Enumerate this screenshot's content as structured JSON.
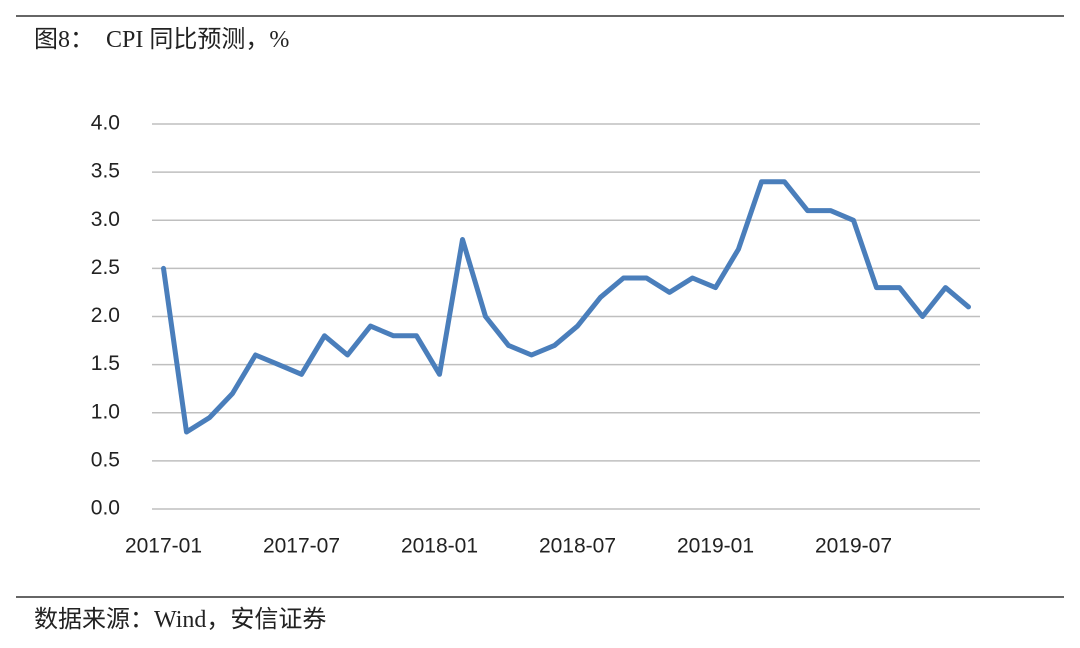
{
  "chart_data": {
    "type": "line",
    "title": "图8：  CPI 同比预测，%",
    "source": "数据来源：Wind，安信证券",
    "categories": [
      "2017-01",
      null,
      null,
      null,
      null,
      null,
      "2017-07",
      null,
      null,
      null,
      null,
      null,
      "2018-01",
      null,
      null,
      null,
      null,
      null,
      "2018-07",
      null,
      null,
      null,
      null,
      null,
      "2019-01",
      null,
      null,
      null,
      null,
      null,
      "2019-07",
      null,
      null,
      null,
      null,
      null
    ],
    "series": [
      {
        "name": "CPI",
        "color": "#4a7ebb",
        "values": [
          2.5,
          0.8,
          0.95,
          1.2,
          1.6,
          1.5,
          1.4,
          1.8,
          1.6,
          1.9,
          1.8,
          1.8,
          1.4,
          2.8,
          2.0,
          1.7,
          1.6,
          1.7,
          1.9,
          2.2,
          2.4,
          2.4,
          2.25,
          2.4,
          2.3,
          2.7,
          3.4,
          3.4,
          3.1,
          3.1,
          3.0,
          2.3,
          2.3,
          2.0,
          2.3,
          2.1
        ]
      }
    ],
    "ylim": [
      0,
      4.0
    ],
    "yticks": [
      {
        "value": 0,
        "label": "0.0"
      },
      0.5,
      {
        "value": 1,
        "label": "1.0"
      },
      1.5,
      {
        "value": 2,
        "label": "2.0"
      },
      2.5,
      {
        "value": 3,
        "label": "3.0"
      },
      3.5,
      {
        "value": 4,
        "label": "4.0"
      }
    ],
    "grid": true
  }
}
